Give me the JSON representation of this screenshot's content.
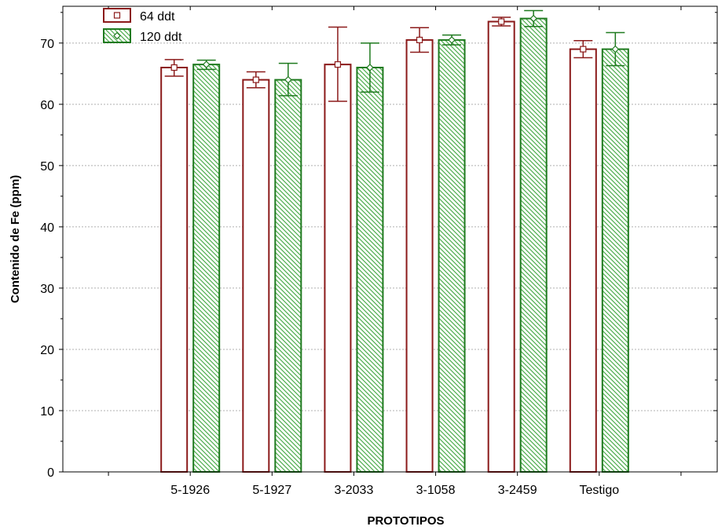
{
  "chart_data": {
    "type": "bar",
    "title": "",
    "xlabel": "PROTOTIPOS",
    "ylabel": "Contenido de Fe (ppm)",
    "ylim": [
      0,
      76
    ],
    "yticks": [
      0,
      10,
      20,
      30,
      40,
      50,
      60,
      70
    ],
    "grid": "horizontal dashed",
    "legend_position": "top-left",
    "categories": [
      "5-1926",
      "5-1927",
      "3-2033",
      "3-1058",
      "3-2459",
      "Testigo"
    ],
    "series": [
      {
        "name": "64  ddt",
        "color": "#8b1a1a",
        "fill": "#ffffff",
        "pattern": "none",
        "marker": "square",
        "values": [
          66.0,
          64.0,
          66.5,
          70.5,
          73.5,
          69.0
        ],
        "err_low": [
          64.6,
          62.7,
          60.5,
          68.5,
          72.8,
          67.6
        ],
        "err_high": [
          67.3,
          65.3,
          72.6,
          72.5,
          74.2,
          70.4
        ]
      },
      {
        "name": "120 ddt",
        "color": "#1f7a1f",
        "fill": "#9fd59f",
        "pattern": "diagonal-hatch",
        "marker": "diamond",
        "values": [
          66.5,
          64.0,
          66.0,
          70.5,
          74.0,
          69.0
        ],
        "err_low": [
          65.7,
          61.4,
          62.0,
          69.7,
          72.7,
          66.3
        ],
        "err_high": [
          67.2,
          66.7,
          70.0,
          71.3,
          75.3,
          71.7
        ]
      }
    ]
  }
}
